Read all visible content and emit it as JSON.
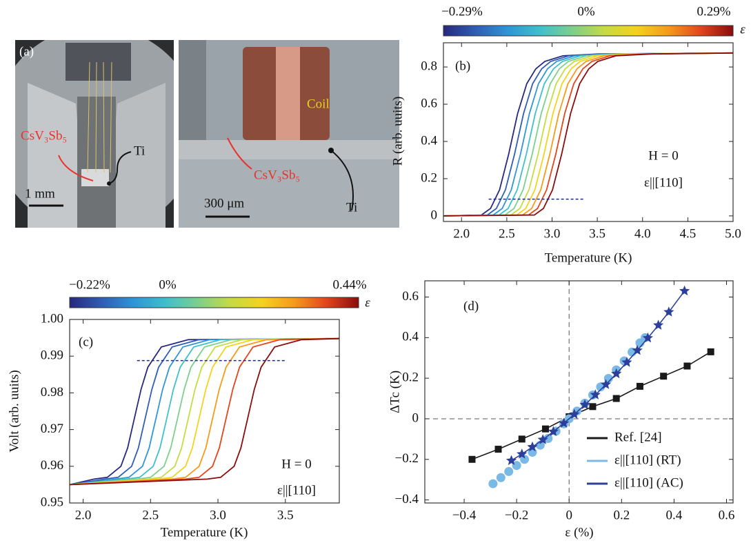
{
  "photos": {
    "left_panel_label": "(a)",
    "left_sample": "CsV₃Sb₅",
    "left_ti": "Ti",
    "left_scale": "1 mm",
    "right_coil": "Coil",
    "right_sample": "CsV₃Sb₅",
    "right_ti": "Ti",
    "right_scale": "300 μm"
  },
  "chart_data": [
    {
      "type": "line",
      "panel_label": "(b)",
      "colorbar_labels": [
        "−0.29%",
        "0%",
        "0.29%"
      ],
      "colorbar_symbol": "ε",
      "xlabel": "Temperature (K)",
      "ylabel": "R (arb. uuits)",
      "annotations": [
        "H = 0",
        "ε||[110]"
      ],
      "xlim": [
        1.8,
        5.0
      ],
      "ylim": [
        -0.03,
        0.93
      ],
      "xticks": [
        {
          "value": 2,
          "label": "2.0"
        },
        2.5,
        {
          "value": 3,
          "label": "3.0"
        },
        3.5,
        {
          "value": 4,
          "label": "4.0"
        },
        4.5,
        {
          "value": 5,
          "label": "5.0"
        }
      ],
      "yticks": [
        0,
        0.2,
        0.4,
        0.6,
        0.8
      ],
      "threshold": {
        "x": [
          2.3,
          3.35
        ],
        "value": 0.09
      },
      "series": [
        {
          "color": "#27287f",
          "x": [
            1.8,
            2.22,
            2.32,
            2.42,
            2.52,
            2.62,
            2.72,
            2.82,
            2.92,
            3.12,
            3.52,
            5.0
          ],
          "values": [
            0,
            0.005,
            0.04,
            0.14,
            0.33,
            0.55,
            0.71,
            0.79,
            0.83,
            0.86,
            0.87,
            0.875
          ]
        },
        {
          "color": "#2f5db3",
          "x": [
            1.8,
            2.285,
            2.385,
            2.485,
            2.585,
            2.685,
            2.785,
            2.885,
            2.985,
            3.185,
            3.585,
            5.0
          ],
          "values": [
            0,
            0.005,
            0.04,
            0.14,
            0.33,
            0.55,
            0.71,
            0.79,
            0.83,
            0.86,
            0.87,
            0.875
          ]
        },
        {
          "color": "#2f95d6",
          "x": [
            1.8,
            2.35,
            2.45,
            2.55,
            2.65,
            2.75,
            2.85,
            2.95,
            3.05,
            3.25,
            3.65,
            5.0
          ],
          "values": [
            0,
            0.005,
            0.04,
            0.14,
            0.33,
            0.55,
            0.71,
            0.79,
            0.83,
            0.86,
            0.87,
            0.875
          ]
        },
        {
          "color": "#3fbfcc",
          "x": [
            1.8,
            2.415,
            2.515,
            2.615,
            2.715,
            2.815,
            2.915,
            3.015,
            3.115,
            3.315,
            3.715,
            5.0
          ],
          "values": [
            0,
            0.005,
            0.04,
            0.14,
            0.33,
            0.55,
            0.71,
            0.79,
            0.83,
            0.86,
            0.87,
            0.875
          ]
        },
        {
          "color": "#7ccf8c",
          "x": [
            1.8,
            2.48,
            2.58,
            2.68,
            2.78,
            2.88,
            2.98,
            3.08,
            3.18,
            3.38,
            3.78,
            5.0
          ],
          "values": [
            0,
            0.005,
            0.04,
            0.14,
            0.33,
            0.55,
            0.71,
            0.79,
            0.83,
            0.86,
            0.87,
            0.875
          ]
        },
        {
          "color": "#c5db43",
          "x": [
            1.8,
            2.545,
            2.645,
            2.745,
            2.845,
            2.945,
            3.045,
            3.145,
            3.245,
            3.445,
            3.845,
            5.0
          ],
          "values": [
            0,
            0.005,
            0.04,
            0.14,
            0.33,
            0.55,
            0.71,
            0.79,
            0.83,
            0.86,
            0.87,
            0.875
          ]
        },
        {
          "color": "#f4d21e",
          "x": [
            1.8,
            2.61,
            2.71,
            2.81,
            2.91,
            3.01,
            3.11,
            3.21,
            3.31,
            3.51,
            3.91,
            5.0
          ],
          "values": [
            0,
            0.005,
            0.04,
            0.14,
            0.33,
            0.55,
            0.71,
            0.79,
            0.83,
            0.86,
            0.87,
            0.875
          ]
        },
        {
          "color": "#f59a1b",
          "x": [
            1.8,
            2.675,
            2.775,
            2.875,
            2.975,
            3.075,
            3.175,
            3.275,
            3.375,
            3.575,
            3.975,
            5.0
          ],
          "values": [
            0,
            0.005,
            0.04,
            0.14,
            0.33,
            0.55,
            0.71,
            0.79,
            0.83,
            0.86,
            0.87,
            0.875
          ]
        },
        {
          "color": "#e2451c",
          "x": [
            1.8,
            2.74,
            2.84,
            2.94,
            3.04,
            3.14,
            3.24,
            3.34,
            3.44,
            3.64,
            4.04,
            5.0
          ],
          "values": [
            0,
            0.005,
            0.04,
            0.14,
            0.33,
            0.55,
            0.71,
            0.79,
            0.83,
            0.86,
            0.87,
            0.875
          ]
        },
        {
          "color": "#8a0c0c",
          "x": [
            1.8,
            2.805,
            2.905,
            3.005,
            3.105,
            3.205,
            3.305,
            3.405,
            3.505,
            3.705,
            4.105,
            5.0
          ],
          "values": [
            0,
            0.005,
            0.04,
            0.14,
            0.33,
            0.55,
            0.71,
            0.79,
            0.83,
            0.86,
            0.87,
            0.875
          ]
        }
      ]
    },
    {
      "type": "line",
      "panel_label": "(c)",
      "colorbar_labels": [
        "−0.22%",
        "0%",
        "0.44%"
      ],
      "colorbar_symbol": "ε",
      "xlabel": "Temperature  (K)",
      "ylabel": "Volt (arb. uuits)",
      "annotations": [
        "H = 0",
        "ε||[110]"
      ],
      "xlim": [
        1.9,
        3.9
      ],
      "ylim": [
        0.95,
        1.0
      ],
      "xticks": [
        {
          "value": 2,
          "label": "2.0"
        },
        2.5,
        {
          "value": 3,
          "label": "3.0"
        },
        3.5
      ],
      "yticks": [
        0.95,
        0.96,
        0.97,
        0.98,
        0.99,
        {
          "value": 1,
          "label": "1.00"
        }
      ],
      "threshold": {
        "x": [
          2.4,
          3.5
        ],
        "value": 0.9888
      },
      "series": [
        {
          "color": "#27287f",
          "x": [
            1.9,
            2.08,
            2.18,
            2.28,
            2.33,
            2.38,
            2.43,
            2.48,
            2.58,
            2.78,
            3.9
          ],
          "values": [
            0.955,
            0.9565,
            0.957,
            0.96,
            0.965,
            0.973,
            0.981,
            0.987,
            0.9925,
            0.9945,
            0.9948
          ]
        },
        {
          "color": "#2f5db3",
          "x": [
            1.9,
            2.16,
            2.26,
            2.36,
            2.41,
            2.46,
            2.51,
            2.56,
            2.66,
            2.86,
            3.9
          ],
          "values": [
            0.955,
            0.9565,
            0.957,
            0.96,
            0.965,
            0.973,
            0.981,
            0.987,
            0.9925,
            0.9945,
            0.9948
          ]
        },
        {
          "color": "#2f95d6",
          "x": [
            1.9,
            2.24,
            2.34,
            2.44,
            2.49,
            2.54,
            2.59,
            2.64,
            2.74,
            2.94,
            3.9
          ],
          "values": [
            0.955,
            0.9565,
            0.957,
            0.96,
            0.965,
            0.973,
            0.981,
            0.987,
            0.9925,
            0.9945,
            0.9948
          ]
        },
        {
          "color": "#3fbfcc",
          "x": [
            1.9,
            2.32,
            2.42,
            2.52,
            2.57,
            2.62,
            2.67,
            2.72,
            2.82,
            3.02,
            3.9
          ],
          "values": [
            0.955,
            0.9565,
            0.957,
            0.96,
            0.965,
            0.973,
            0.981,
            0.987,
            0.9925,
            0.9945,
            0.9948
          ]
        },
        {
          "color": "#7ccf8c",
          "x": [
            1.9,
            2.4,
            2.5,
            2.6,
            2.65,
            2.7,
            2.75,
            2.8,
            2.9,
            3.1,
            3.9
          ],
          "values": [
            0.955,
            0.9565,
            0.957,
            0.96,
            0.965,
            0.973,
            0.981,
            0.987,
            0.9925,
            0.9945,
            0.9948
          ]
        },
        {
          "color": "#c5db43",
          "x": [
            1.9,
            2.48,
            2.58,
            2.68,
            2.73,
            2.78,
            2.83,
            2.88,
            2.98,
            3.18,
            3.9
          ],
          "values": [
            0.955,
            0.9565,
            0.957,
            0.96,
            0.965,
            0.973,
            0.981,
            0.987,
            0.9925,
            0.9945,
            0.9948
          ]
        },
        {
          "color": "#f4d21e",
          "x": [
            1.9,
            2.56,
            2.66,
            2.76,
            2.81,
            2.86,
            2.91,
            2.96,
            3.06,
            3.26,
            3.9
          ],
          "values": [
            0.955,
            0.9565,
            0.957,
            0.96,
            0.965,
            0.973,
            0.981,
            0.987,
            0.9925,
            0.9945,
            0.9948
          ]
        },
        {
          "color": "#f59a1b",
          "x": [
            1.9,
            2.66,
            2.76,
            2.86,
            2.91,
            2.96,
            3.01,
            3.06,
            3.16,
            3.36,
            3.9
          ],
          "values": [
            0.955,
            0.9565,
            0.957,
            0.96,
            0.965,
            0.973,
            0.981,
            0.987,
            0.9925,
            0.9945,
            0.9948
          ]
        },
        {
          "color": "#e2451c",
          "x": [
            1.9,
            2.76,
            2.86,
            2.96,
            3.01,
            3.06,
            3.11,
            3.16,
            3.26,
            3.46,
            3.9
          ],
          "values": [
            0.955,
            0.9565,
            0.957,
            0.96,
            0.965,
            0.973,
            0.981,
            0.987,
            0.9925,
            0.9945,
            0.9948
          ]
        },
        {
          "color": "#8a0c0c",
          "x": [
            1.9,
            2.92,
            3.02,
            3.12,
            3.17,
            3.22,
            3.27,
            3.32,
            3.42,
            3.62,
            3.9
          ],
          "values": [
            0.955,
            0.9565,
            0.957,
            0.96,
            0.965,
            0.973,
            0.981,
            0.987,
            0.9925,
            0.9945,
            0.9948
          ]
        }
      ]
    },
    {
      "type": "scatter",
      "panel_label": "(d)",
      "xlabel": "ε (%)",
      "ylabel": "ΔTc (K)",
      "legend": "lower right",
      "xlim": [
        -0.55,
        0.625
      ],
      "ylim": [
        -0.415,
        0.68
      ],
      "xticks": [
        {
          "value": -0.4,
          "label": "−0.4"
        },
        {
          "value": -0.2,
          "label": "−0.2"
        },
        0,
        0.2,
        0.4,
        0.6
      ],
      "yticks": [
        {
          "value": -0.4,
          "label": "−0.4"
        },
        {
          "value": -0.2,
          "label": "−0.2"
        },
        0,
        0.2,
        0.4,
        0.6
      ],
      "series": [
        {
          "name": "Ref. [24]",
          "color": "#1a1a1a",
          "marker": "square",
          "line": true,
          "x": [
            -0.37,
            -0.27,
            -0.18,
            -0.09,
            0,
            0.09,
            0.18,
            0.27,
            0.36,
            0.45,
            0.54
          ],
          "values": [
            -0.2,
            -0.15,
            -0.1,
            -0.05,
            0.01,
            0.06,
            0.1,
            0.16,
            0.21,
            0.26,
            0.33
          ]
        },
        {
          "name": "ε||[110] (RT)",
          "color": "#7ab8e6",
          "marker": "circle",
          "line": false,
          "x": [
            -0.29,
            -0.26,
            -0.23,
            -0.2,
            -0.17,
            -0.14,
            -0.11,
            -0.08,
            -0.05,
            -0.02,
            0,
            0.03,
            0.06,
            0.09,
            0.12,
            0.15,
            0.18,
            0.21,
            0.24,
            0.27,
            0.29
          ],
          "values": [
            -0.32,
            -0.29,
            -0.26,
            -0.23,
            -0.2,
            -0.165,
            -0.13,
            -0.097,
            -0.061,
            -0.025,
            0,
            0.038,
            0.077,
            0.117,
            0.157,
            0.199,
            0.241,
            0.285,
            0.329,
            0.374,
            0.4
          ]
        },
        {
          "name": "ε||[110] (AC)",
          "color": "#2c3f9a",
          "marker": "star",
          "line": true,
          "x": [
            -0.22,
            -0.18,
            -0.14,
            -0.1,
            -0.06,
            -0.02,
            0.02,
            0.06,
            0.1,
            0.14,
            0.18,
            0.22,
            0.26,
            0.3,
            0.34,
            0.38,
            0.44
          ],
          "values": [
            -0.206,
            -0.174,
            -0.139,
            -0.103,
            -0.063,
            -0.022,
            0.022,
            0.069,
            0.118,
            0.169,
            0.222,
            0.278,
            0.337,
            0.398,
            0.461,
            0.526,
            0.63
          ]
        }
      ]
    }
  ]
}
